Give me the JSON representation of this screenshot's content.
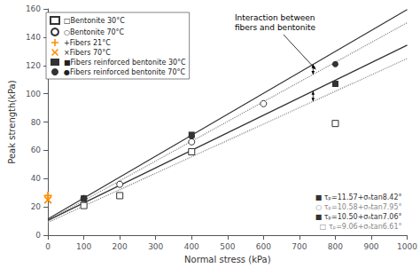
{
  "chart_data": {
    "type": "scatter",
    "xlabel": "Normal stress (kPa)",
    "ylabel": "Peak strength(kPa)",
    "xlim": [
      0,
      1000
    ],
    "ylim": [
      0,
      160
    ],
    "xticks": [
      0,
      100,
      200,
      300,
      400,
      500,
      600,
      700,
      800,
      900,
      1000
    ],
    "yticks": [
      0,
      20,
      40,
      60,
      80,
      100,
      120,
      140,
      160
    ],
    "grid": false,
    "legend": "upper left",
    "annotation": "Interaction between\nfibers and bentonite",
    "series": [
      {
        "type": "line",
        "line_style": "dotted",
        "color": "#888888",
        "x": [
          0,
          1000
        ],
        "values": [
          9.06,
          124.94
        ],
        "annotation": "□ τₚ=9.06+σₙtan6.61°"
      },
      {
        "type": "line",
        "line_style": "dotted",
        "color": "#888888",
        "x": [
          0,
          1000
        ],
        "values": [
          10.58,
          150.23
        ],
        "annotation": "○ τₚ=10.58+σₙtan7.95°"
      },
      {
        "type": "line",
        "line_style": "solid",
        "color": "#333333",
        "x": [
          0,
          1000
        ],
        "values": [
          10.5,
          134.35
        ],
        "annotation": "■ τₚ=10.50+σₙtan7.06°"
      },
      {
        "type": "line",
        "line_style": "solid",
        "color": "#333333",
        "x": [
          0,
          1000
        ],
        "values": [
          11.57,
          159.59
        ],
        "annotation": "■ τₚ=11.57+σₙtan8.42°"
      },
      {
        "type": "scatter",
        "name": "□Bentonite 30°C",
        "marker": "open-square",
        "color": "#333333",
        "x": [
          100,
          200,
          400,
          800
        ],
        "values": [
          21,
          28,
          59,
          79
        ]
      },
      {
        "type": "scatter",
        "name": "○Bentonite 70°C",
        "marker": "open-circle",
        "color": "#333333",
        "x": [
          100,
          200,
          400,
          600
        ],
        "values": [
          26,
          36,
          66,
          93
        ]
      },
      {
        "type": "scatter",
        "name": "+Fibers 21°C",
        "marker": "plus",
        "color": "#FF8C00",
        "x": [
          0
        ],
        "values": [
          28
        ]
      },
      {
        "type": "scatter",
        "name": "×Fibers 70°C",
        "marker": "x",
        "color": "#FF8C00",
        "x": [
          0
        ],
        "values": [
          25
        ]
      },
      {
        "type": "scatter",
        "name": "■Fibers reinforced bentonite 30°C",
        "marker": "square",
        "color": "#333333",
        "x": [
          100,
          400,
          800
        ],
        "values": [
          26,
          71,
          107
        ]
      },
      {
        "type": "scatter",
        "name": "●Fibers reinforced bentonite 70°C",
        "marker": "circle",
        "color": "#333333",
        "x": [
          100,
          400,
          800
        ],
        "values": [
          26,
          70,
          121
        ]
      }
    ]
  }
}
